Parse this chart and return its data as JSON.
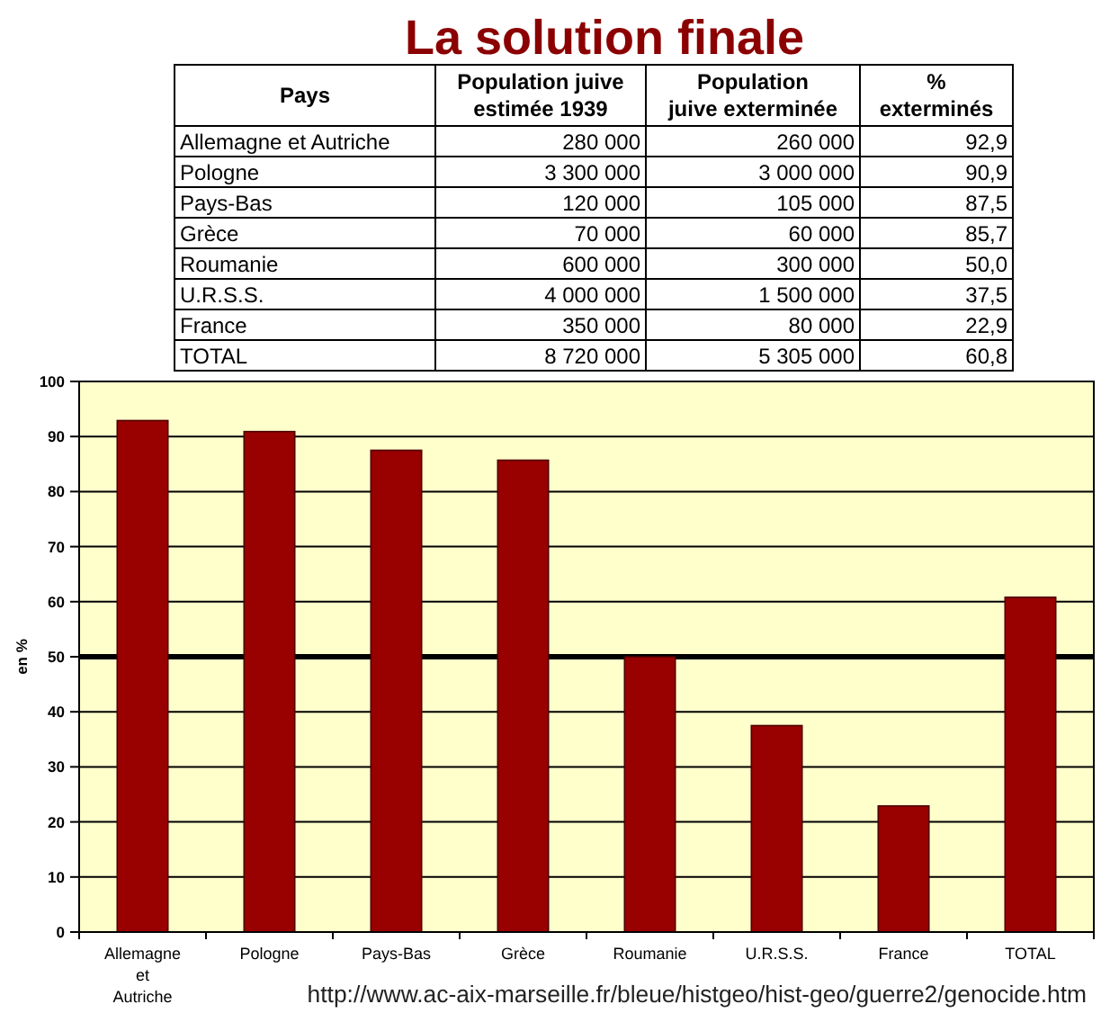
{
  "chart_data": [
    {
      "type": "other",
      "title": "La solution finale",
      "xlabel": "Pays",
      "categories": [
        "Allemagne et Autriche",
        "Pologne",
        "Pays-Bas",
        "Grèce",
        "Roumanie",
        "U.R.S.S.",
        "France",
        "TOTAL"
      ],
      "data_labels": true,
      "series": [
        {
          "name": "Population juive\nestimée 1939",
          "values": [
            280000,
            3300000,
            120000,
            70000,
            600000,
            4000000,
            350000,
            8720000
          ]
        },
        {
          "name": "Population\njuive exterminée",
          "values": [
            260000,
            3000000,
            105000,
            60000,
            300000,
            1500000,
            80000,
            5305000
          ]
        },
        {
          "name": "%\nexterminés",
          "values": [
            92.9,
            90.9,
            87.5,
            85.7,
            50.0,
            37.5,
            22.9,
            60.8
          ],
          "value_labels": [
            "92,9",
            "90,9",
            "87,5",
            "85,7",
            "50,0",
            "37,5",
            "22,9",
            "60,8"
          ]
        }
      ]
    },
    {
      "type": "bar",
      "categories": [
        "Allemagne et Autriche",
        "Pologne",
        "Pays-Bas",
        "Grèce",
        "Roumanie",
        "U.R.S.S.",
        "France",
        "TOTAL"
      ],
      "values": [
        92.9,
        90.9,
        87.5,
        85.7,
        50.0,
        37.5,
        22.9,
        60.8
      ],
      "color": "#990000",
      "ylabel": "en %",
      "ylim": [
        0,
        100
      ],
      "yticks": [
        0,
        10,
        20,
        30,
        40,
        50,
        60,
        70,
        80,
        90,
        100
      ],
      "grid": "y",
      "ref_lines": [
        {
          "axis": "y",
          "value": 50,
          "color": "#000000"
        }
      ],
      "annotations": [
        "http://www.ac-aix-marseille.fr/bleue/histgeo/hist-geo/guerre2/genocide.htm"
      ]
    }
  ]
}
